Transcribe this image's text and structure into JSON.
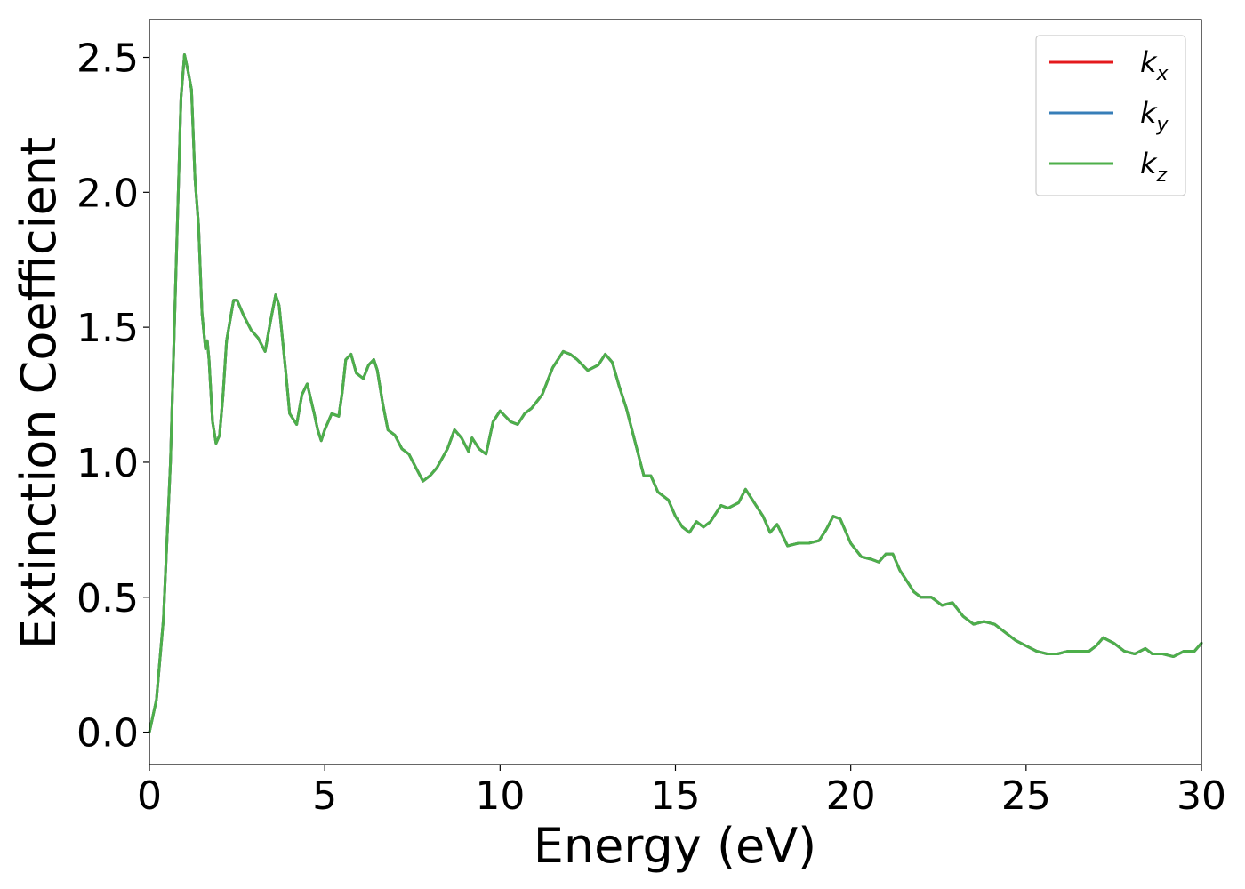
{
  "chart_data": {
    "type": "line",
    "xlabel": "Energy (eV)",
    "ylabel": "Extinction Coefficient",
    "xlim": [
      0,
      30
    ],
    "ylim": [
      -0.12,
      2.64
    ],
    "xticks": [
      0,
      5,
      10,
      15,
      20,
      25,
      30
    ],
    "xtick_labels": [
      "0",
      "5",
      "10",
      "15",
      "20",
      "25",
      "30"
    ],
    "yticks": [
      0.0,
      0.5,
      1.0,
      1.5,
      2.0,
      2.5
    ],
    "ytick_labels": [
      "0.0",
      "0.5",
      "1.0",
      "1.5",
      "2.0",
      "2.5"
    ],
    "grid": false,
    "legend_position": "top-right",
    "x": [
      0,
      0.2,
      0.4,
      0.6,
      0.8,
      0.9,
      1.0,
      1.1,
      1.2,
      1.3,
      1.4,
      1.5,
      1.6,
      1.65,
      1.7,
      1.8,
      1.9,
      2.0,
      2.1,
      2.2,
      2.4,
      2.5,
      2.7,
      2.9,
      3.1,
      3.3,
      3.45,
      3.6,
      3.7,
      3.8,
      3.9,
      4.0,
      4.2,
      4.35,
      4.5,
      4.7,
      4.8,
      4.9,
      5.0,
      5.2,
      5.4,
      5.5,
      5.6,
      5.75,
      5.9,
      6.0,
      6.1,
      6.25,
      6.4,
      6.5,
      6.65,
      6.8,
      7.0,
      7.2,
      7.4,
      7.6,
      7.8,
      8.0,
      8.2,
      8.5,
      8.7,
      8.9,
      9.1,
      9.2,
      9.4,
      9.6,
      9.8,
      10.0,
      10.3,
      10.5,
      10.7,
      10.9,
      11.2,
      11.5,
      11.8,
      12.0,
      12.2,
      12.5,
      12.8,
      13.0,
      13.2,
      13.4,
      13.6,
      13.9,
      14.1,
      14.3,
      14.5,
      14.8,
      15.0,
      15.2,
      15.4,
      15.6,
      15.8,
      16.0,
      16.3,
      16.5,
      16.8,
      17.0,
      17.3,
      17.5,
      17.7,
      17.9,
      18.2,
      18.5,
      18.8,
      19.1,
      19.3,
      19.5,
      19.7,
      20.0,
      20.3,
      20.6,
      20.8,
      21.0,
      21.2,
      21.4,
      21.6,
      21.8,
      22.0,
      22.3,
      22.6,
      22.9,
      23.2,
      23.5,
      23.8,
      24.1,
      24.4,
      24.7,
      25.0,
      25.3,
      25.6,
      25.9,
      26.2,
      26.5,
      26.8,
      27.0,
      27.2,
      27.5,
      27.8,
      28.1,
      28.4,
      28.6,
      28.9,
      29.2,
      29.5,
      29.8,
      30.0
    ],
    "series": [
      {
        "name": "kx",
        "label_base": "k",
        "label_sub": "x",
        "color": "#e41a1c",
        "values": [
          0.0,
          0.12,
          0.42,
          1.0,
          1.9,
          2.35,
          2.51,
          2.45,
          2.38,
          2.05,
          1.88,
          1.55,
          1.42,
          1.45,
          1.38,
          1.15,
          1.07,
          1.1,
          1.25,
          1.45,
          1.6,
          1.6,
          1.54,
          1.49,
          1.46,
          1.41,
          1.52,
          1.62,
          1.58,
          1.45,
          1.32,
          1.18,
          1.14,
          1.25,
          1.29,
          1.18,
          1.12,
          1.08,
          1.12,
          1.18,
          1.17,
          1.26,
          1.38,
          1.4,
          1.33,
          1.32,
          1.31,
          1.36,
          1.38,
          1.34,
          1.22,
          1.12,
          1.1,
          1.05,
          1.03,
          0.98,
          0.93,
          0.95,
          0.98,
          1.05,
          1.12,
          1.09,
          1.04,
          1.09,
          1.05,
          1.03,
          1.15,
          1.19,
          1.15,
          1.14,
          1.18,
          1.2,
          1.25,
          1.35,
          1.41,
          1.4,
          1.38,
          1.34,
          1.36,
          1.4,
          1.37,
          1.28,
          1.2,
          1.05,
          0.95,
          0.95,
          0.89,
          0.86,
          0.8,
          0.76,
          0.74,
          0.78,
          0.76,
          0.78,
          0.84,
          0.83,
          0.85,
          0.9,
          0.84,
          0.8,
          0.74,
          0.77,
          0.69,
          0.7,
          0.7,
          0.71,
          0.75,
          0.8,
          0.79,
          0.7,
          0.65,
          0.64,
          0.63,
          0.66,
          0.66,
          0.6,
          0.56,
          0.52,
          0.5,
          0.5,
          0.47,
          0.48,
          0.43,
          0.4,
          0.41,
          0.4,
          0.37,
          0.34,
          0.32,
          0.3,
          0.29,
          0.29,
          0.3,
          0.3,
          0.3,
          0.32,
          0.35,
          0.33,
          0.3,
          0.29,
          0.31,
          0.29,
          0.29,
          0.28,
          0.3,
          0.3,
          0.33
        ]
      },
      {
        "name": "ky",
        "label_base": "k",
        "label_sub": "y",
        "color": "#377eb8",
        "values": [
          0.0,
          0.12,
          0.42,
          1.0,
          1.9,
          2.35,
          2.51,
          2.45,
          2.38,
          2.05,
          1.88,
          1.55,
          1.42,
          1.45,
          1.38,
          1.15,
          1.07,
          1.1,
          1.25,
          1.45,
          1.6,
          1.6,
          1.54,
          1.49,
          1.46,
          1.41,
          1.52,
          1.62,
          1.58,
          1.45,
          1.32,
          1.18,
          1.14,
          1.25,
          1.29,
          1.18,
          1.12,
          1.08,
          1.12,
          1.18,
          1.17,
          1.26,
          1.38,
          1.4,
          1.33,
          1.32,
          1.31,
          1.36,
          1.38,
          1.34,
          1.22,
          1.12,
          1.1,
          1.05,
          1.03,
          0.98,
          0.93,
          0.95,
          0.98,
          1.05,
          1.12,
          1.09,
          1.04,
          1.09,
          1.05,
          1.03,
          1.15,
          1.19,
          1.15,
          1.14,
          1.18,
          1.2,
          1.25,
          1.35,
          1.41,
          1.4,
          1.38,
          1.34,
          1.36,
          1.4,
          1.37,
          1.28,
          1.2,
          1.05,
          0.95,
          0.95,
          0.89,
          0.86,
          0.8,
          0.76,
          0.74,
          0.78,
          0.76,
          0.78,
          0.84,
          0.83,
          0.85,
          0.9,
          0.84,
          0.8,
          0.74,
          0.77,
          0.69,
          0.7,
          0.7,
          0.71,
          0.75,
          0.8,
          0.79,
          0.7,
          0.65,
          0.64,
          0.63,
          0.66,
          0.66,
          0.6,
          0.56,
          0.52,
          0.5,
          0.5,
          0.47,
          0.48,
          0.43,
          0.4,
          0.41,
          0.4,
          0.37,
          0.34,
          0.32,
          0.3,
          0.29,
          0.29,
          0.3,
          0.3,
          0.3,
          0.32,
          0.35,
          0.33,
          0.3,
          0.29,
          0.31,
          0.29,
          0.29,
          0.28,
          0.3,
          0.3,
          0.33
        ]
      },
      {
        "name": "kz",
        "label_base": "k",
        "label_sub": "z",
        "color": "#4daf4a",
        "values": [
          0.0,
          0.12,
          0.42,
          1.0,
          1.9,
          2.35,
          2.51,
          2.45,
          2.38,
          2.05,
          1.88,
          1.55,
          1.42,
          1.45,
          1.38,
          1.15,
          1.07,
          1.1,
          1.25,
          1.45,
          1.6,
          1.6,
          1.54,
          1.49,
          1.46,
          1.41,
          1.52,
          1.62,
          1.58,
          1.45,
          1.32,
          1.18,
          1.14,
          1.25,
          1.29,
          1.18,
          1.12,
          1.08,
          1.12,
          1.18,
          1.17,
          1.26,
          1.38,
          1.4,
          1.33,
          1.32,
          1.31,
          1.36,
          1.38,
          1.34,
          1.22,
          1.12,
          1.1,
          1.05,
          1.03,
          0.98,
          0.93,
          0.95,
          0.98,
          1.05,
          1.12,
          1.09,
          1.04,
          1.09,
          1.05,
          1.03,
          1.15,
          1.19,
          1.15,
          1.14,
          1.18,
          1.2,
          1.25,
          1.35,
          1.41,
          1.4,
          1.38,
          1.34,
          1.36,
          1.4,
          1.37,
          1.28,
          1.2,
          1.05,
          0.95,
          0.95,
          0.89,
          0.86,
          0.8,
          0.76,
          0.74,
          0.78,
          0.76,
          0.78,
          0.84,
          0.83,
          0.85,
          0.9,
          0.84,
          0.8,
          0.74,
          0.77,
          0.69,
          0.7,
          0.7,
          0.71,
          0.75,
          0.8,
          0.79,
          0.7,
          0.65,
          0.64,
          0.63,
          0.66,
          0.66,
          0.6,
          0.56,
          0.52,
          0.5,
          0.5,
          0.47,
          0.48,
          0.43,
          0.4,
          0.41,
          0.4,
          0.37,
          0.34,
          0.32,
          0.3,
          0.29,
          0.29,
          0.3,
          0.3,
          0.3,
          0.32,
          0.35,
          0.33,
          0.3,
          0.29,
          0.31,
          0.29,
          0.29,
          0.28,
          0.3,
          0.3,
          0.33
        ]
      }
    ]
  }
}
